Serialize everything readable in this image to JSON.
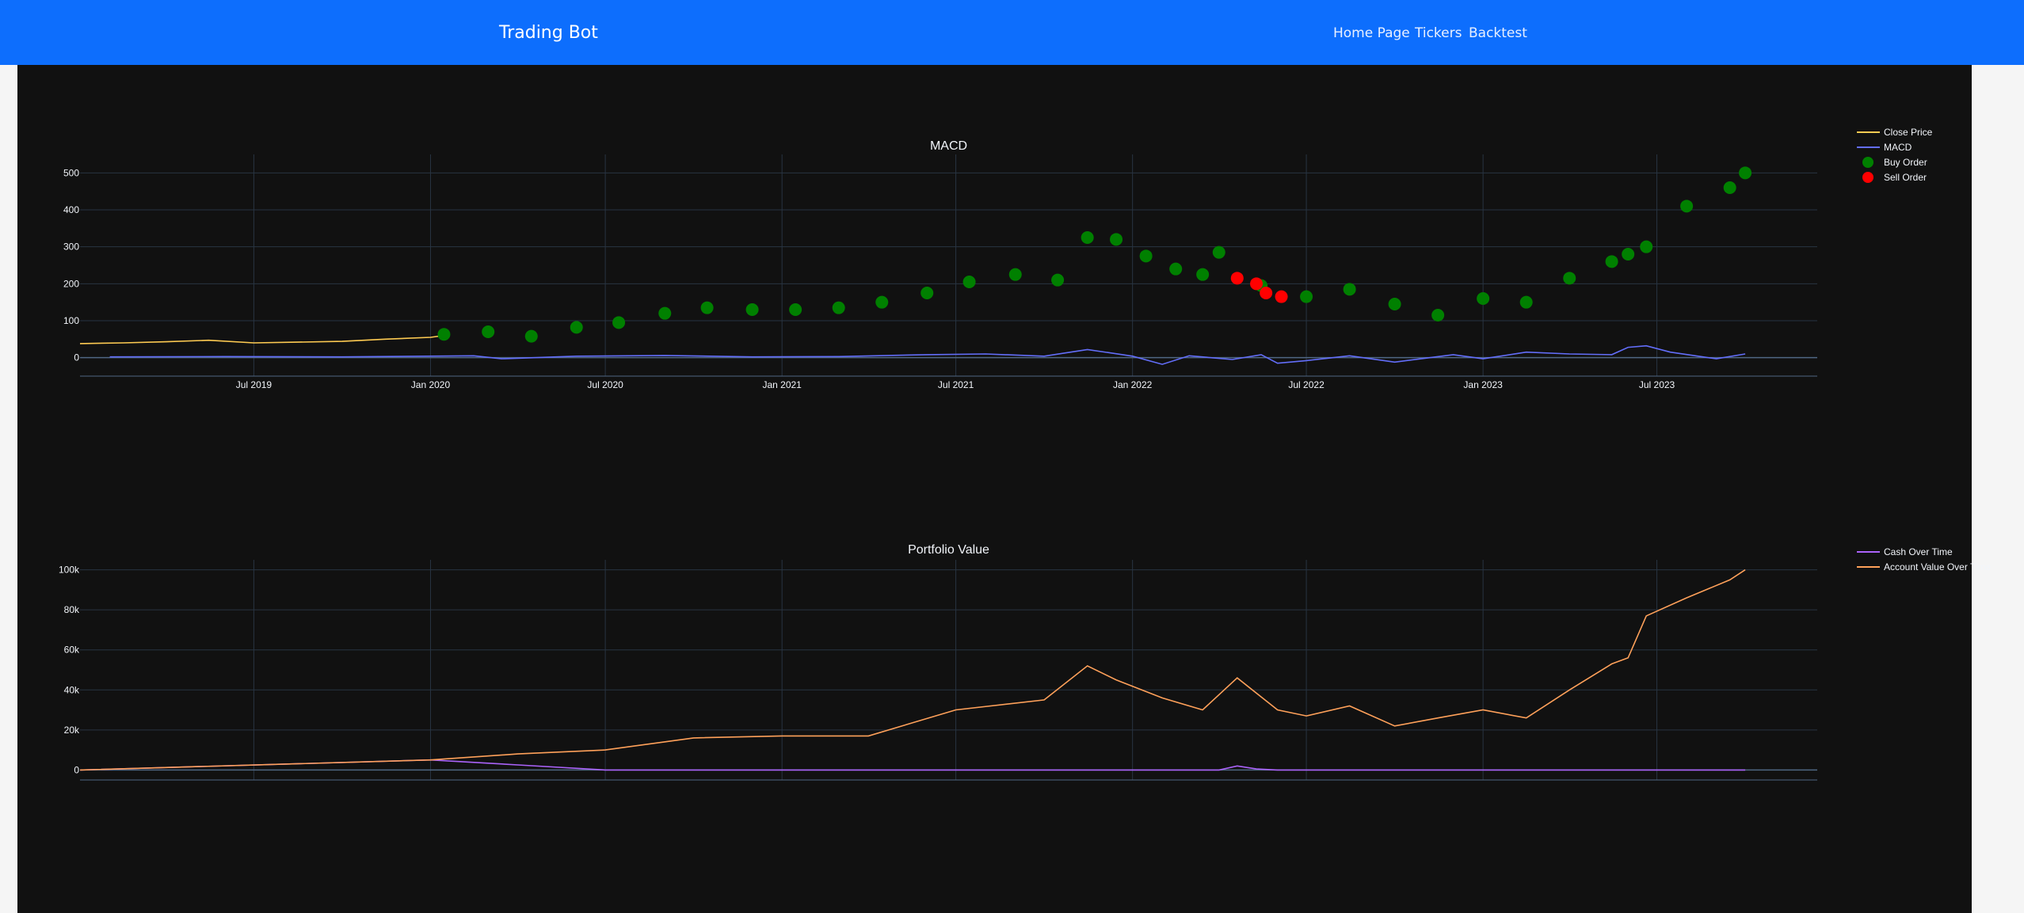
{
  "header": {
    "brand": "Trading Bot",
    "nav": [
      {
        "label": "Home Page"
      },
      {
        "label": "Tickers"
      },
      {
        "label": "Backtest"
      }
    ],
    "color": "#0d6efd"
  },
  "theme": {
    "plot_bg": "#111111",
    "grid": "#283442",
    "text": "#f2f5fa"
  },
  "chart_data": [
    {
      "type": "line",
      "title": "MACD",
      "x_tick_labels": [
        "Jul 2019",
        "Jan 2020",
        "Jul 2020",
        "Jan 2021",
        "Jul 2021",
        "Jan 2022",
        "Jul 2022",
        "Jan 2023",
        "Jul 2023"
      ],
      "x_tick_dates": [
        "2019-07-01",
        "2020-01-01",
        "2020-07-01",
        "2021-01-01",
        "2021-07-01",
        "2022-01-01",
        "2022-07-01",
        "2023-01-01",
        "2023-07-01"
      ],
      "xlim": [
        "2019-01-01",
        "2023-12-15"
      ],
      "y_ticks": [
        0,
        100,
        200,
        300,
        400,
        500
      ],
      "ylim": [
        -50,
        550
      ],
      "grid": true,
      "legend_position": "top-right",
      "series": [
        {
          "name": "Close Price",
          "kind": "line",
          "color": "#fecb52",
          "x": [
            "2019-01-01",
            "2019-02-15",
            "2019-04-01",
            "2019-05-15",
            "2019-07-01",
            "2019-08-15",
            "2019-10-01",
            "2019-11-15",
            "2020-01-01",
            "2020-01-15"
          ],
          "y": [
            38,
            40,
            43,
            47,
            40,
            42,
            44,
            50,
            55,
            60
          ]
        },
        {
          "name": "MACD",
          "kind": "line",
          "color": "#636efa",
          "x": [
            "2019-02-01",
            "2019-06-01",
            "2019-10-01",
            "2020-02-15",
            "2020-03-15",
            "2020-06-01",
            "2020-09-01",
            "2020-12-01",
            "2021-03-01",
            "2021-06-01",
            "2021-08-01",
            "2021-10-01",
            "2021-11-15",
            "2022-01-01",
            "2022-02-01",
            "2022-03-01",
            "2022-04-15",
            "2022-05-15",
            "2022-06-01",
            "2022-07-01",
            "2022-08-15",
            "2022-10-01",
            "2022-12-01",
            "2023-01-01",
            "2023-02-15",
            "2023-04-01",
            "2023-05-15",
            "2023-06-01",
            "2023-06-20",
            "2023-07-15",
            "2023-09-01",
            "2023-10-01"
          ],
          "y": [
            2,
            3,
            2,
            5,
            -3,
            4,
            6,
            2,
            3,
            8,
            10,
            4,
            22,
            4,
            -18,
            5,
            -5,
            8,
            -15,
            -8,
            5,
            -12,
            8,
            -3,
            15,
            10,
            8,
            28,
            32,
            15,
            -3,
            10
          ]
        },
        {
          "name": "Buy Order",
          "kind": "markers",
          "color": "#008000",
          "x": [
            "2020-01-15",
            "2020-03-01",
            "2020-04-15",
            "2020-06-01",
            "2020-07-15",
            "2020-09-01",
            "2020-10-15",
            "2020-12-01",
            "2021-01-15",
            "2021-03-01",
            "2021-04-15",
            "2021-06-01",
            "2021-07-15",
            "2021-09-01",
            "2021-10-15",
            "2021-11-15",
            "2021-12-15",
            "2022-01-15",
            "2022-02-15",
            "2022-03-15",
            "2022-04-01",
            "2022-05-15",
            "2022-07-01",
            "2022-08-15",
            "2022-10-01",
            "2022-11-15",
            "2023-01-01",
            "2023-02-15",
            "2023-04-01",
            "2023-05-15",
            "2023-06-01",
            "2023-06-20",
            "2023-08-01",
            "2023-09-15",
            "2023-10-01"
          ],
          "y": [
            63,
            70,
            58,
            82,
            95,
            120,
            135,
            130,
            130,
            135,
            150,
            175,
            205,
            225,
            210,
            325,
            320,
            275,
            240,
            225,
            285,
            195,
            165,
            185,
            145,
            115,
            160,
            150,
            215,
            260,
            280,
            300,
            410,
            460,
            500
          ]
        },
        {
          "name": "Sell Order",
          "kind": "markers",
          "color": "#ff0000",
          "x": [
            "2022-04-20",
            "2022-05-10",
            "2022-05-20",
            "2022-06-05"
          ],
          "y": [
            215,
            200,
            175,
            165
          ]
        }
      ]
    },
    {
      "type": "line",
      "title": "Portfolio Value",
      "x_tick_dates": [
        "2019-07-01",
        "2020-01-01",
        "2020-07-01",
        "2021-01-01",
        "2021-07-01",
        "2022-01-01",
        "2022-07-01",
        "2023-01-01",
        "2023-07-01"
      ],
      "xlim": [
        "2019-01-01",
        "2023-12-15"
      ],
      "y_ticks": [
        0,
        20000,
        40000,
        60000,
        80000,
        100000
      ],
      "y_tick_labels": [
        "0",
        "20k",
        "40k",
        "60k",
        "80k",
        "100k"
      ],
      "ylim": [
        -5000,
        105000
      ],
      "grid": true,
      "legend_position": "top-right",
      "series": [
        {
          "name": "Cash Over Time",
          "kind": "line",
          "color": "#ab63fa",
          "x": [
            "2019-01-01",
            "2020-01-01",
            "2020-04-01",
            "2020-07-01",
            "2020-10-01",
            "2022-04-01",
            "2022-04-20",
            "2022-05-10",
            "2022-06-01",
            "2023-10-01"
          ],
          "y": [
            0,
            5000,
            2500,
            0,
            0,
            0,
            2000,
            500,
            0,
            0
          ]
        },
        {
          "name": "Account Value Over Time",
          "kind": "line",
          "color": "#ffa15a",
          "x": [
            "2019-01-01",
            "2020-01-01",
            "2020-04-01",
            "2020-07-01",
            "2020-10-01",
            "2021-01-01",
            "2021-04-01",
            "2021-07-01",
            "2021-10-01",
            "2021-11-15",
            "2021-12-15",
            "2022-02-01",
            "2022-03-15",
            "2022-04-20",
            "2022-06-01",
            "2022-07-01",
            "2022-08-15",
            "2022-10-01",
            "2022-11-15",
            "2023-01-01",
            "2023-02-15",
            "2023-04-01",
            "2023-05-15",
            "2023-06-01",
            "2023-06-20",
            "2023-08-01",
            "2023-09-15",
            "2023-10-01"
          ],
          "y": [
            0,
            5000,
            8000,
            10000,
            16000,
            17000,
            17000,
            30000,
            35000,
            52000,
            45000,
            36000,
            30000,
            46000,
            30000,
            27000,
            32000,
            22000,
            26000,
            30000,
            26000,
            40000,
            53000,
            56000,
            77000,
            86000,
            95000,
            100000
          ]
        }
      ]
    }
  ]
}
